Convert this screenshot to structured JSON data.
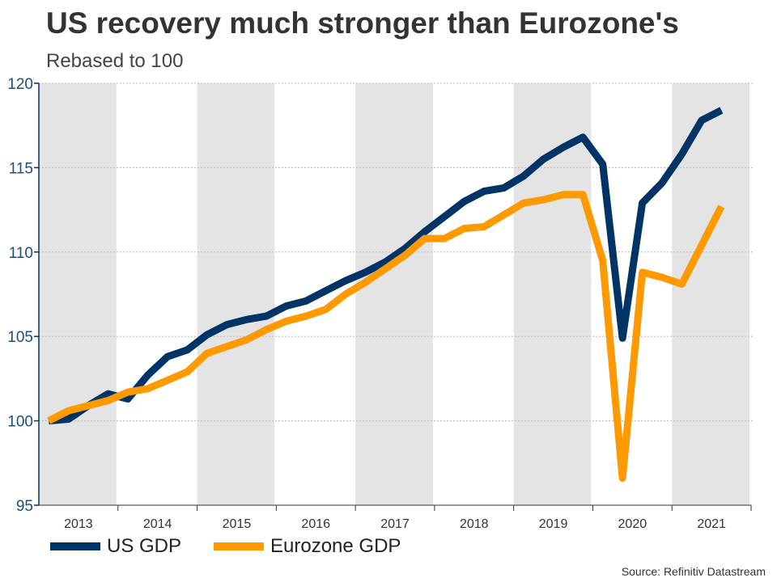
{
  "chart_data": {
    "type": "line",
    "title": "US recovery much stronger than Eurozone's",
    "subtitle": "Rebased to 100",
    "source": "Source: Refinitiv Datastream",
    "xlabel": "",
    "ylabel": "",
    "ylim": [
      95,
      120
    ],
    "yticks": [
      "95",
      "100",
      "105",
      "110",
      "115",
      "120"
    ],
    "year_labels": [
      "2013",
      "2014",
      "2015",
      "2016",
      "2017",
      "2018",
      "2019",
      "2020",
      "2021"
    ],
    "x": [
      "2013Q1",
      "2013Q2",
      "2013Q3",
      "2013Q4",
      "2014Q1",
      "2014Q2",
      "2014Q3",
      "2014Q4",
      "2015Q1",
      "2015Q2",
      "2015Q3",
      "2015Q4",
      "2016Q1",
      "2016Q2",
      "2016Q3",
      "2016Q4",
      "2017Q1",
      "2017Q2",
      "2017Q3",
      "2017Q4",
      "2018Q1",
      "2018Q2",
      "2018Q3",
      "2018Q4",
      "2019Q1",
      "2019Q2",
      "2019Q3",
      "2019Q4",
      "2020Q1",
      "2020Q2",
      "2020Q3",
      "2020Q4",
      "2021Q1",
      "2021Q2",
      "2021Q3"
    ],
    "grid": true,
    "legend_position": "bottom-left",
    "series": [
      {
        "name": "US GDP",
        "color": "#003366",
        "values": [
          100,
          100.1,
          100.9,
          101.6,
          101.3,
          102.7,
          103.8,
          104.2,
          105.1,
          105.7,
          106.0,
          106.2,
          106.8,
          107.1,
          107.7,
          108.3,
          108.8,
          109.4,
          110.2,
          111.2,
          112.1,
          113.0,
          113.6,
          113.8,
          114.5,
          115.5,
          116.2,
          116.8,
          115.2,
          104.9,
          112.9,
          114.1,
          115.8,
          117.8,
          118.4
        ]
      },
      {
        "name": "Eurozone GDP",
        "color": "#FF9900",
        "values": [
          100,
          100.6,
          100.9,
          101.2,
          101.7,
          101.9,
          102.4,
          102.9,
          104.0,
          104.4,
          104.8,
          105.4,
          105.9,
          106.2,
          106.6,
          107.5,
          108.2,
          109.0,
          109.8,
          110.8,
          110.8,
          111.4,
          111.5,
          112.2,
          112.9,
          113.1,
          113.4,
          113.4,
          109.5,
          96.6,
          108.8,
          108.5,
          108.1,
          110.4,
          112.7
        ]
      }
    ]
  }
}
